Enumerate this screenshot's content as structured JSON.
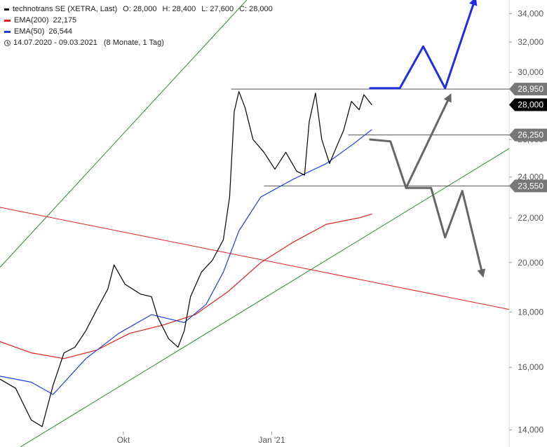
{
  "legend": {
    "title": "technotrans SE (XETRA, Last)",
    "open": "O: 28,000",
    "high": "H: 28,400",
    "low": "L: 27,600",
    "close": "C: 28,000",
    "ema200_label": "EMA(200)",
    "ema200_value": "22,175",
    "ema200_color": "#e02020",
    "ema50_label": "EMA(50)",
    "ema50_value": "26,544",
    "ema50_color": "#1f3fd6",
    "date_range": "14.07.2020 - 09.03.2021",
    "period": "(8 Monate, 1 Tag)"
  },
  "chart_data": {
    "type": "line",
    "yscale": "log",
    "ylim": [
      13500,
      35000
    ],
    "y_ticks": [
      {
        "value": 14000,
        "label": "14,000"
      },
      {
        "value": 16000,
        "label": "16,000"
      },
      {
        "value": 18000,
        "label": "18,000"
      },
      {
        "value": 20000,
        "label": "20,000"
      },
      {
        "value": 22000,
        "label": "22,000"
      },
      {
        "value": 24000,
        "label": "24,000"
      },
      {
        "value": 26000,
        "label": "26,000"
      },
      {
        "value": 28000,
        "label": "28,000"
      },
      {
        "value": 30000,
        "label": "30,000"
      },
      {
        "value": 32000,
        "label": "32,000"
      },
      {
        "value": 34000,
        "label": "34,000"
      }
    ],
    "x_ticks": [
      {
        "date": "2020-10-01",
        "label": "Okt"
      },
      {
        "date": "2021-01-04",
        "label": "Jan '21"
      }
    ],
    "xlim": [
      "2020-07-14",
      "2021-06-05"
    ],
    "price_series": {
      "name": "technotrans SE",
      "color": "#000000",
      "points": [
        [
          "2020-07-14",
          15600
        ],
        [
          "2020-07-24",
          15300
        ],
        [
          "2020-08-03",
          14300
        ],
        [
          "2020-08-10",
          14100
        ],
        [
          "2020-08-17",
          15400
        ],
        [
          "2020-08-24",
          16500
        ],
        [
          "2020-08-31",
          16700
        ],
        [
          "2020-09-07",
          17300
        ],
        [
          "2020-09-14",
          18100
        ],
        [
          "2020-09-21",
          18900
        ],
        [
          "2020-09-25",
          19900
        ],
        [
          "2020-10-02",
          19100
        ],
        [
          "2020-10-12",
          18700
        ],
        [
          "2020-10-19",
          18600
        ],
        [
          "2020-10-23",
          17800
        ],
        [
          "2020-10-30",
          17000
        ],
        [
          "2020-11-05",
          16700
        ],
        [
          "2020-11-09",
          17300
        ],
        [
          "2020-11-13",
          18600
        ],
        [
          "2020-11-20",
          19600
        ],
        [
          "2020-11-27",
          20100
        ],
        [
          "2020-12-04",
          21000
        ],
        [
          "2020-12-08",
          23000
        ],
        [
          "2020-12-11",
          27600
        ],
        [
          "2020-12-14",
          28800
        ],
        [
          "2020-12-18",
          27800
        ],
        [
          "2020-12-23",
          26000
        ],
        [
          "2020-12-30",
          25300
        ],
        [
          "2021-01-06",
          24400
        ],
        [
          "2021-01-13",
          25300
        ],
        [
          "2021-01-20",
          24300
        ],
        [
          "2021-01-25",
          24100
        ],
        [
          "2021-01-28",
          27000
        ],
        [
          "2021-02-01",
          28700
        ],
        [
          "2021-02-05",
          26000
        ],
        [
          "2021-02-10",
          24700
        ],
        [
          "2021-02-15",
          25700
        ],
        [
          "2021-02-19",
          26500
        ],
        [
          "2021-02-24",
          28200
        ],
        [
          "2021-03-01",
          27700
        ],
        [
          "2021-03-04",
          28600
        ],
        [
          "2021-03-09",
          28000
        ]
      ]
    },
    "ema200": {
      "name": "EMA(200)",
      "color": "#e02020",
      "points": [
        [
          "2020-07-14",
          16900
        ],
        [
          "2020-08-03",
          16500
        ],
        [
          "2020-08-24",
          16300
        ],
        [
          "2020-09-14",
          16600
        ],
        [
          "2020-10-05",
          17200
        ],
        [
          "2020-10-26",
          17500
        ],
        [
          "2020-11-16",
          17900
        ],
        [
          "2020-12-07",
          18800
        ],
        [
          "2020-12-28",
          20000
        ],
        [
          "2021-01-18",
          20900
        ],
        [
          "2021-02-08",
          21700
        ],
        [
          "2021-03-01",
          22000
        ],
        [
          "2021-03-09",
          22175
        ]
      ]
    },
    "ema50": {
      "name": "EMA(50)",
      "color": "#1f3fd6",
      "points": [
        [
          "2020-07-14",
          15700
        ],
        [
          "2020-08-03",
          15500
        ],
        [
          "2020-08-17",
          15100
        ],
        [
          "2020-09-07",
          16300
        ],
        [
          "2020-09-28",
          17200
        ],
        [
          "2020-10-19",
          17900
        ],
        [
          "2020-11-09",
          17600
        ],
        [
          "2020-11-23",
          18300
        ],
        [
          "2020-12-04",
          19600
        ],
        [
          "2020-12-14",
          21400
        ],
        [
          "2020-12-28",
          23000
        ],
        [
          "2021-01-18",
          23900
        ],
        [
          "2021-02-08",
          24700
        ],
        [
          "2021-02-26",
          25800
        ],
        [
          "2021-03-09",
          26544
        ]
      ]
    },
    "trend_lines": [
      {
        "name": "upper-channel-line",
        "color": "#2e8b2e",
        "from": [
          "2020-07-14",
          19800
        ],
        "to": [
          "2020-12-19",
          35000
        ]
      },
      {
        "name": "lower-channel-line",
        "color": "#2e8b2e",
        "from": [
          "2020-07-27",
          13500
        ],
        "to": [
          "2021-06-05",
          25500
        ]
      },
      {
        "name": "downtrend-line",
        "color": "#e02020",
        "from": [
          "2020-07-14",
          22500
        ],
        "to": [
          "2021-06-05",
          18100
        ]
      }
    ],
    "horizontal_levels": [
      {
        "name": "level-28950",
        "value": 28950,
        "label": "28,950",
        "from": "2020-12-09",
        "style": "grey"
      },
      {
        "name": "level-28000",
        "value": 28000,
        "label": "28,000",
        "style": "black"
      },
      {
        "name": "level-26250",
        "value": 26250,
        "label": "26,250",
        "from": "2021-02-22",
        "style": "grey"
      },
      {
        "name": "level-23550",
        "value": 23550,
        "label": "23,550",
        "from": "2020-12-30",
        "style": "grey"
      }
    ],
    "scenario_paths": [
      {
        "name": "bullish-scenario-arrow",
        "color": "#1f2fe0",
        "points": [
          [
            "2021-03-08",
            29000
          ],
          [
            "2021-03-27",
            29000
          ],
          [
            "2021-04-11",
            31700
          ],
          [
            "2021-04-25",
            29000
          ],
          [
            "2021-05-14",
            35000
          ]
        ]
      },
      {
        "name": "bounce-scenario-arrow",
        "color": "#666666",
        "points": [
          [
            "2021-03-08",
            26000
          ],
          [
            "2021-03-21",
            25900
          ],
          [
            "2021-03-31",
            23450
          ],
          [
            "2021-04-28",
            28500
          ]
        ]
      },
      {
        "name": "bearish-scenario-arrow",
        "color": "#666666",
        "points": [
          [
            "2021-03-31",
            23450
          ],
          [
            "2021-04-16",
            23450
          ],
          [
            "2021-04-25",
            21100
          ],
          [
            "2021-05-06",
            23300
          ],
          [
            "2021-05-19",
            19500
          ]
        ]
      }
    ],
    "title": "",
    "xlabel": "",
    "ylabel": "",
    "grid": false,
    "legend_position": "top-left"
  }
}
